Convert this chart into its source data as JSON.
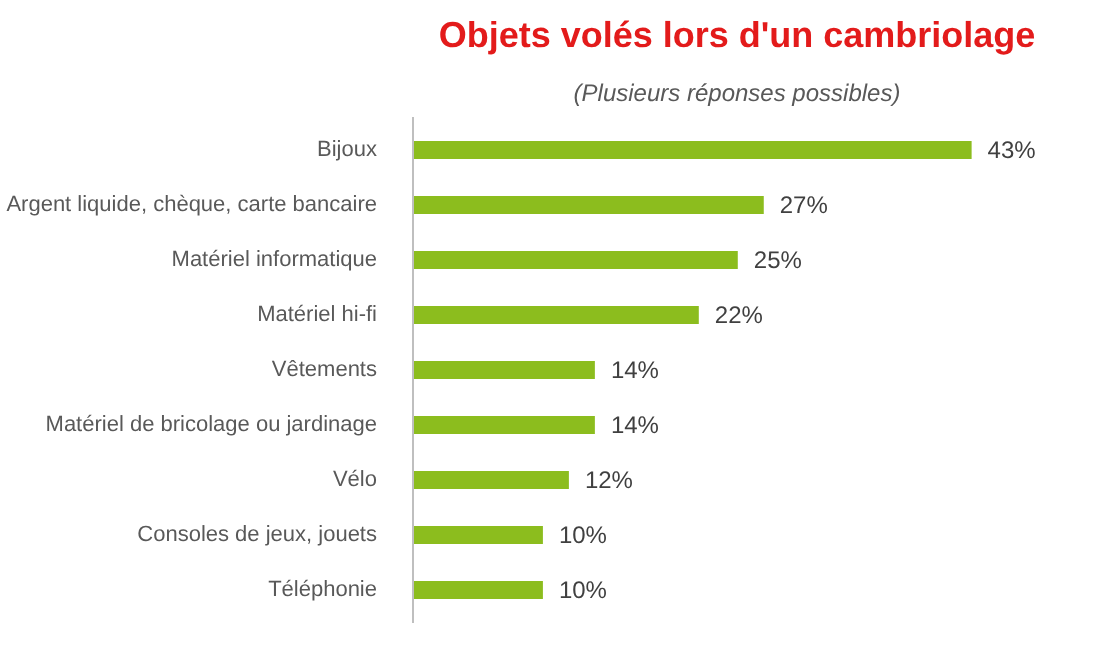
{
  "chart_data": {
    "type": "bar",
    "orientation": "horizontal",
    "title": "Objets volés lors d'un cambriolage",
    "subtitle": "(Plusieurs réponses possibles)",
    "categories": [
      "Bijoux",
      "Argent liquide, chèque, carte bancaire",
      "Matériel informatique",
      "Matériel hi-fi",
      "Vêtements",
      "Matériel de bricolage ou jardinage",
      "Vélo",
      "Consoles de jeux, jouets",
      "Téléphonie"
    ],
    "values": [
      43,
      27,
      25,
      22,
      14,
      14,
      12,
      10,
      10
    ],
    "value_labels": [
      "43%",
      "27%",
      "25%",
      "22%",
      "14%",
      "14%",
      "12%",
      "10%",
      "10%"
    ],
    "color": "#8cbd1e",
    "grid": false
  }
}
